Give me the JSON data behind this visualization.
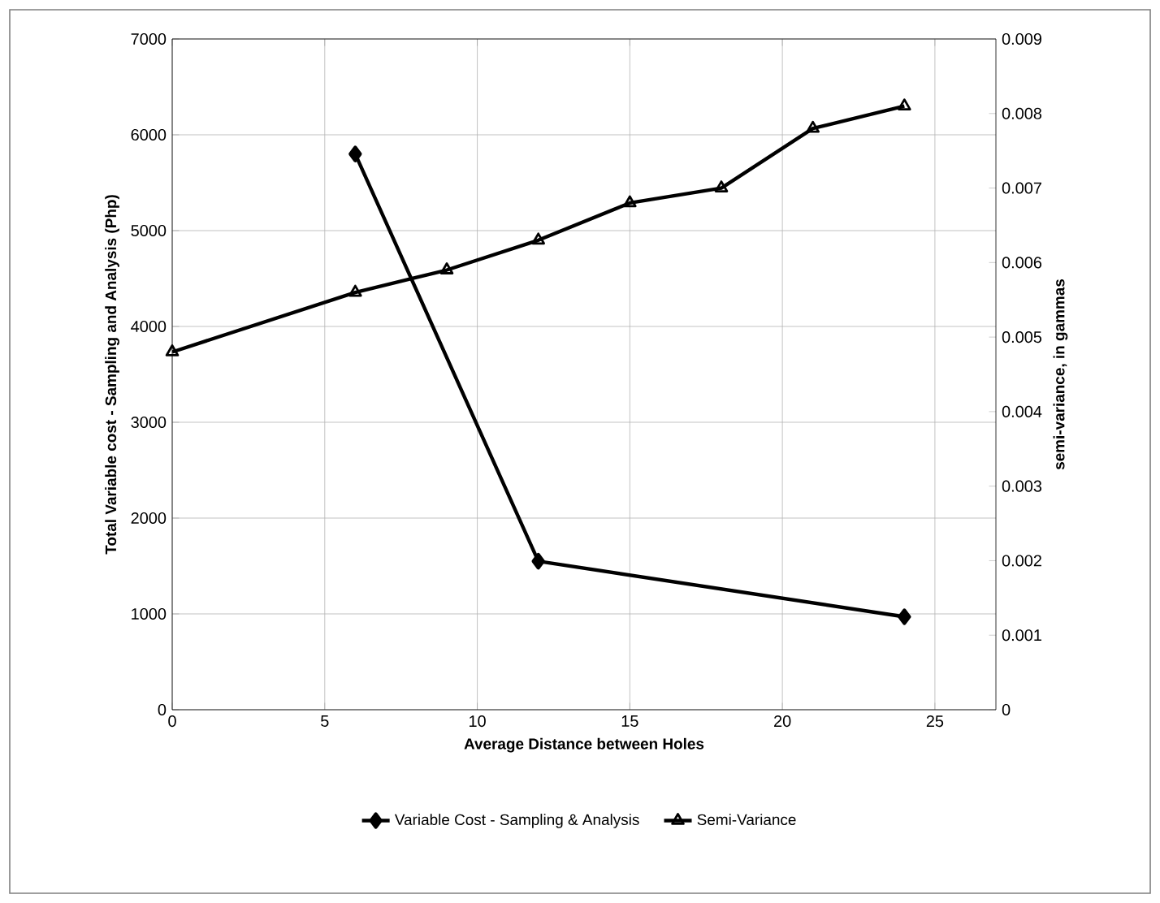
{
  "chart_data": {
    "type": "line",
    "xlabel": "Average Distance between Holes",
    "ylabel": "Total Variable cost - Sampling and Analysis (Php)",
    "y2label": "semi-variance, in gammas",
    "xlim": [
      0,
      27
    ],
    "xticks": [
      0,
      5,
      10,
      15,
      20,
      25
    ],
    "ylim": [
      0,
      7000
    ],
    "yticks": [
      0,
      1000,
      2000,
      3000,
      4000,
      5000,
      6000,
      7000
    ],
    "y2lim": [
      0,
      0.009
    ],
    "y2ticks": [
      0,
      0.001,
      0.002,
      0.003,
      0.004,
      0.005,
      0.006,
      0.007,
      0.008,
      0.009
    ],
    "grid": true,
    "legend": "bottom",
    "line_style": "solid",
    "series": [
      {
        "name": "Variable Cost - Sampling & Analysis",
        "color": "#000000",
        "marker": "diamond",
        "x": [
          6,
          12,
          24
        ],
        "values": [
          5800,
          1550,
          970
        ]
      },
      {
        "name": "Semi-Variance",
        "color": "#000000",
        "marker": "triangle",
        "axis": "y2",
        "x": [
          0,
          6,
          9,
          12,
          15,
          18,
          21,
          24
        ],
        "values": [
          0.0048,
          0.0056,
          0.0059,
          0.0063,
          0.0068,
          0.007,
          0.0078,
          0.0081
        ]
      }
    ]
  }
}
